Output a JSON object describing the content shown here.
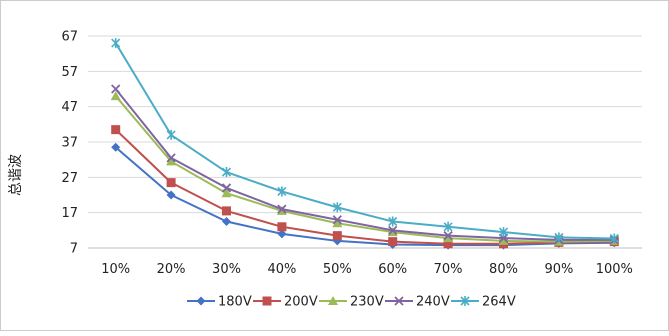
{
  "chart_data": {
    "type": "line",
    "title": "",
    "ylabel": "总谐波",
    "xlabel": "",
    "categories": [
      "10%",
      "20%",
      "30%",
      "40%",
      "50%",
      "60%",
      "70%",
      "80%",
      "90%",
      "100%"
    ],
    "yticks": [
      "67",
      "57",
      "47",
      "37",
      "27",
      "17",
      "7"
    ],
    "ylim": [
      7,
      67
    ],
    "grid": "horizontal",
    "legend_position": "bottom",
    "series": [
      {
        "name": "180V",
        "color": "#4472C4",
        "marker": "diamond",
        "values": [
          35.5,
          22,
          14.5,
          11,
          9,
          8,
          7.8,
          7.8,
          8.3,
          8.5
        ]
      },
      {
        "name": "200V",
        "color": "#C0504D",
        "marker": "square",
        "values": [
          40.5,
          25.5,
          17.5,
          13,
          10.5,
          8.8,
          8.2,
          8.2,
          8.6,
          8.8
        ]
      },
      {
        "name": "230V",
        "color": "#9BBB59",
        "marker": "triangle",
        "values": [
          50,
          31.5,
          22.5,
          17.5,
          14,
          11.5,
          9.8,
          9,
          8.8,
          9
        ]
      },
      {
        "name": "240V",
        "color": "#8064A2",
        "marker": "x",
        "values": [
          52,
          32.5,
          24,
          18,
          15,
          12,
          10.5,
          9.8,
          9.3,
          9.3
        ]
      },
      {
        "name": "264V",
        "color": "#4BACC6",
        "marker": "star",
        "values": [
          65,
          39,
          28.5,
          23,
          18.5,
          14.5,
          13,
          11.5,
          10,
          9.7
        ]
      }
    ]
  }
}
